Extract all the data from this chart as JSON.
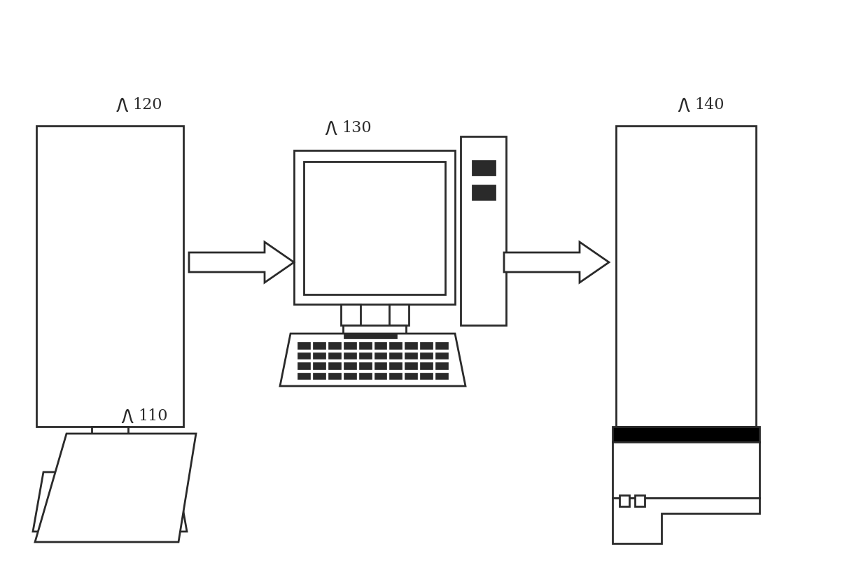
{
  "bg_color": "#ffffff",
  "line_color": "#2a2a2a",
  "label_120": "120",
  "label_130": "130",
  "label_140": "140",
  "label_110": "110",
  "figw": 12.4,
  "figh": 8.05,
  "dpi": 100
}
